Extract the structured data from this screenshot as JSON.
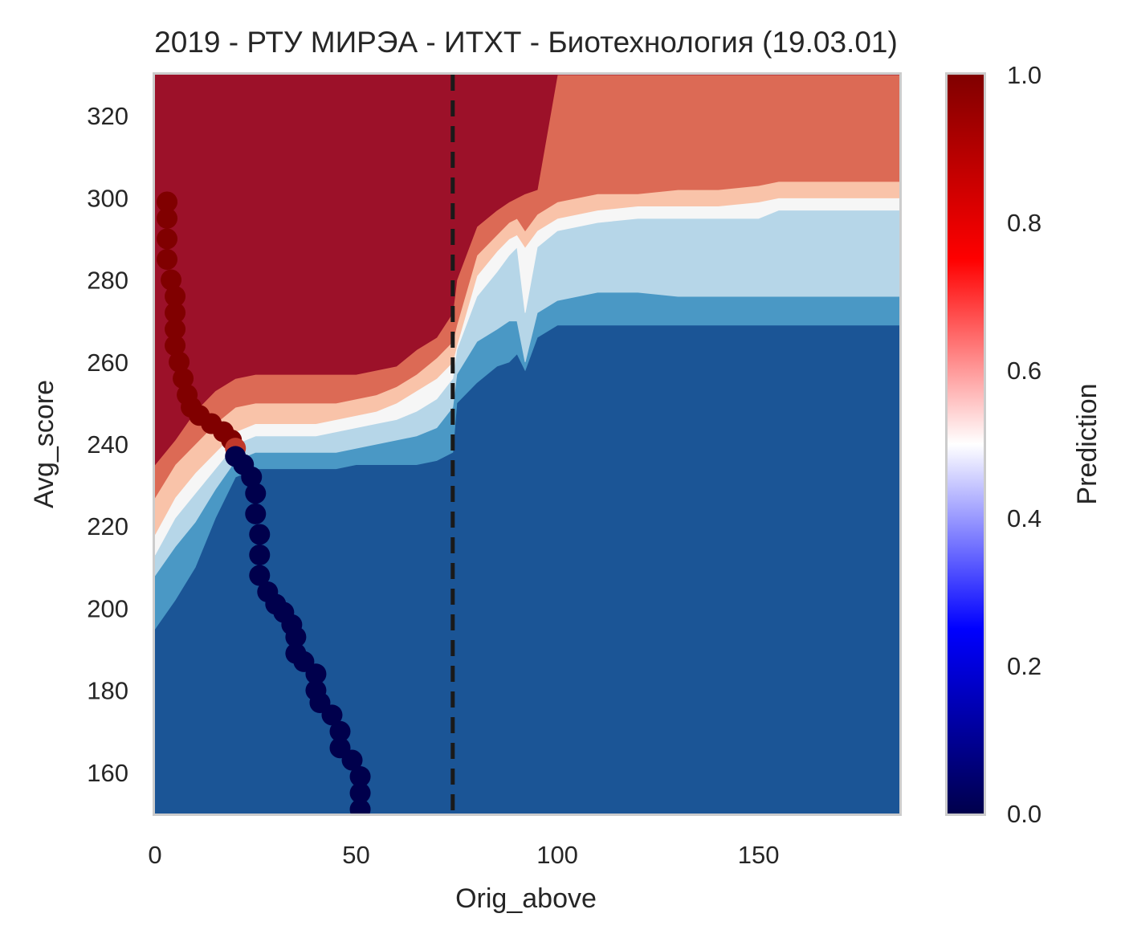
{
  "chart_data": {
    "type": "heatmap",
    "title": "2019 - РТУ МИРЭА - ИТХТ - Биотехнология (19.03.01)",
    "xlabel": "Orig_above",
    "ylabel": "Avg_score",
    "xlim": [
      0,
      185
    ],
    "ylim": [
      150,
      330
    ],
    "x_ticks": [
      "0",
      "50",
      "100",
      "150"
    ],
    "x_tick_values": [
      0,
      50,
      100,
      150
    ],
    "y_ticks": [
      "160",
      "180",
      "200",
      "220",
      "240",
      "260",
      "280",
      "300",
      "320"
    ],
    "y_tick_values": [
      160,
      180,
      200,
      220,
      240,
      260,
      280,
      300,
      320
    ],
    "grid": false,
    "colorbar": {
      "label": "Prediction",
      "range": [
        0,
        1
      ],
      "ticks": [
        "0.0",
        "0.2",
        "0.4",
        "0.6",
        "0.8",
        "1.0"
      ],
      "tick_values": [
        0,
        0.2,
        0.4,
        0.6,
        0.8,
        1.0
      ],
      "colormap": "seismic"
    },
    "contour_levels": [
      {
        "min": 0.0,
        "max": 0.2,
        "color": "#1b5596"
      },
      {
        "min": 0.2,
        "max": 0.35,
        "color": "#4a98c5"
      },
      {
        "min": 0.35,
        "max": 0.5,
        "color": "#b6d6e8"
      },
      {
        "min": 0.5,
        "max": 0.6,
        "color": "#f6f6f6"
      },
      {
        "min": 0.6,
        "max": 0.7,
        "color": "#f9c3a9"
      },
      {
        "min": 0.7,
        "max": 0.85,
        "color": "#dc6a55"
      },
      {
        "min": 0.85,
        "max": 1.0,
        "color": "#9c1129"
      }
    ],
    "boundary_curves": {
      "x_values": [
        0,
        5,
        10,
        15,
        20,
        25,
        30,
        35,
        40,
        45,
        50,
        55,
        60,
        65,
        70,
        74,
        75,
        80,
        85,
        88,
        90,
        92,
        95,
        100,
        110,
        120,
        130,
        140,
        150,
        155,
        160,
        170,
        185
      ],
      "upper_0.85": [
        235,
        241,
        248,
        253,
        256,
        257,
        257,
        257,
        257,
        257,
        257,
        258,
        259,
        263,
        266,
        272,
        280,
        293,
        297,
        299,
        300,
        301,
        302,
        330,
        330,
        330,
        330,
        330,
        330,
        330,
        330,
        330,
        330
      ],
      "upper_0.70": [
        227,
        235,
        240,
        245,
        249,
        250,
        250,
        250,
        250,
        250,
        251,
        252,
        254,
        257,
        261,
        265,
        269,
        286,
        291,
        294,
        295,
        292,
        296,
        299,
        301,
        301,
        302,
        302,
        303,
        304,
        304,
        304,
        304
      ],
      "upper_0.60": [
        218,
        227,
        233,
        238,
        243,
        245,
        245,
        245,
        245,
        246,
        247,
        248,
        250,
        253,
        256,
        260,
        264,
        281,
        287,
        290,
        291,
        288,
        292,
        295,
        297,
        298,
        298,
        298,
        299,
        300,
        300,
        300,
        300
      ],
      "upper_0.50": [
        213,
        222,
        228,
        234,
        240,
        242,
        242,
        242,
        242,
        243,
        244,
        245,
        246,
        248,
        251,
        256,
        263,
        276,
        282,
        286,
        288,
        272,
        288,
        292,
        294,
        295,
        295,
        295,
        295,
        297,
        297,
        297,
        297
      ],
      "upper_0.35": [
        208,
        215,
        221,
        229,
        236,
        238,
        238,
        238,
        238,
        238,
        239,
        240,
        241,
        242,
        244,
        249,
        257,
        265,
        268,
        270,
        270,
        260,
        272,
        275,
        277,
        277,
        276,
        276,
        276,
        276,
        276,
        276,
        276
      ],
      "upper_0.20": [
        195,
        202,
        210,
        222,
        232,
        234,
        234,
        234,
        234,
        234,
        235,
        235,
        235,
        235,
        236,
        238,
        250,
        255,
        259,
        260,
        262,
        258,
        266,
        269,
        269,
        269,
        269,
        269,
        269,
        269,
        269,
        269,
        269
      ]
    },
    "series": [
      {
        "type": "scatter",
        "color_scale": "prediction",
        "points": [
          {
            "x": 3,
            "y": 299,
            "p": 1.0
          },
          {
            "x": 3,
            "y": 295,
            "p": 1.0
          },
          {
            "x": 3,
            "y": 290,
            "p": 1.0
          },
          {
            "x": 3,
            "y": 285,
            "p": 1.0
          },
          {
            "x": 4,
            "y": 280,
            "p": 1.0
          },
          {
            "x": 5,
            "y": 276,
            "p": 1.0
          },
          {
            "x": 5,
            "y": 272,
            "p": 1.0
          },
          {
            "x": 5,
            "y": 268,
            "p": 1.0
          },
          {
            "x": 5,
            "y": 264,
            "p": 1.0
          },
          {
            "x": 6,
            "y": 260,
            "p": 1.0
          },
          {
            "x": 7,
            "y": 256,
            "p": 1.0
          },
          {
            "x": 8,
            "y": 252,
            "p": 1.0
          },
          {
            "x": 9,
            "y": 249,
            "p": 1.0
          },
          {
            "x": 11,
            "y": 247,
            "p": 1.0
          },
          {
            "x": 14,
            "y": 245,
            "p": 0.98
          },
          {
            "x": 17,
            "y": 243,
            "p": 0.95
          },
          {
            "x": 19,
            "y": 241,
            "p": 0.85
          },
          {
            "x": 20,
            "y": 239,
            "p": 0.6
          },
          {
            "x": 20,
            "y": 237,
            "p": 0.05
          },
          {
            "x": 22,
            "y": 235,
            "p": 0.0
          },
          {
            "x": 24,
            "y": 232,
            "p": 0.0
          },
          {
            "x": 25,
            "y": 228,
            "p": 0.0
          },
          {
            "x": 25,
            "y": 223,
            "p": 0.0
          },
          {
            "x": 26,
            "y": 218,
            "p": 0.0
          },
          {
            "x": 26,
            "y": 213,
            "p": 0.0
          },
          {
            "x": 26,
            "y": 208,
            "p": 0.0
          },
          {
            "x": 28,
            "y": 204,
            "p": 0.0
          },
          {
            "x": 30,
            "y": 201,
            "p": 0.0
          },
          {
            "x": 32,
            "y": 199,
            "p": 0.0
          },
          {
            "x": 34,
            "y": 196,
            "p": 0.0
          },
          {
            "x": 35,
            "y": 193,
            "p": 0.0
          },
          {
            "x": 35,
            "y": 189,
            "p": 0.0
          },
          {
            "x": 37,
            "y": 187,
            "p": 0.0
          },
          {
            "x": 40,
            "y": 184,
            "p": 0.0
          },
          {
            "x": 40,
            "y": 180,
            "p": 0.0
          },
          {
            "x": 41,
            "y": 177,
            "p": 0.0
          },
          {
            "x": 44,
            "y": 174,
            "p": 0.0
          },
          {
            "x": 46,
            "y": 170,
            "p": 0.0
          },
          {
            "x": 46,
            "y": 166,
            "p": 0.0
          },
          {
            "x": 49,
            "y": 163,
            "p": 0.0
          },
          {
            "x": 51,
            "y": 159,
            "p": 0.0
          },
          {
            "x": 51,
            "y": 155,
            "p": 0.0
          },
          {
            "x": 51,
            "y": 151,
            "p": 0.0
          }
        ]
      }
    ],
    "reference_line": {
      "x": 74,
      "style": "dashed",
      "color": "#1a1a1a"
    }
  }
}
